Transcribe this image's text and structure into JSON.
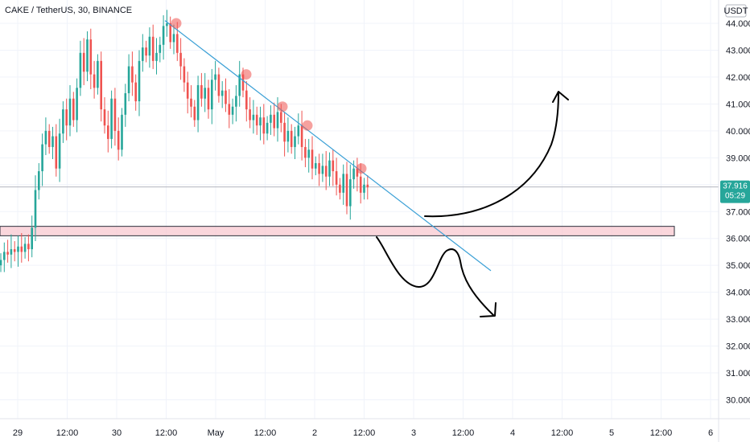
{
  "chart_data": {
    "type": "candlestick",
    "title": "CAKE / TetherUS, 30, BINANCE",
    "currency": "USDT",
    "last_price": {
      "value": "37.916",
      "countdown": "05:29",
      "price": 37.916
    },
    "ylim": [
      29.5,
      44.5
    ],
    "y_ticks": [
      "30.000",
      "31.000",
      "32.000",
      "33.000",
      "34.000",
      "35.000",
      "36.000",
      "37.000",
      "38.000",
      "39.000",
      "40.000",
      "41.000",
      "42.000",
      "43.000",
      "44.000"
    ],
    "x_ticks": [
      "29",
      "12:00",
      "30",
      "12:00",
      "May",
      "12:00",
      "2",
      "12:00",
      "3",
      "12:00",
      "4",
      "12:00",
      "5",
      "12:00",
      "6"
    ],
    "closes": [
      35.2,
      35.5,
      35.4,
      35.6,
      35.5,
      35.7,
      35.5,
      35.8,
      35.6,
      36.4,
      37.8,
      38.5,
      39.5,
      40.0,
      39.4,
      39.8,
      38.6,
      39.9,
      40.8,
      40.2,
      41.2,
      40.4,
      41.6,
      42.9,
      42.2,
      43.4,
      42.1,
      41.6,
      42.6,
      40.8,
      40.2,
      39.7,
      41.2,
      40.0,
      39.3,
      40.6,
      41.4,
      42.4,
      41.8,
      41.1,
      42.6,
      43.1,
      42.8,
      43.5,
      42.6,
      42.9,
      43.2,
      43.9,
      44.0,
      43.3,
      43.6,
      42.9,
      42.4,
      41.8,
      41.2,
      40.9,
      40.4,
      41.7,
      41.2,
      41.6,
      40.8,
      41.9,
      42.1,
      41.3,
      41.5,
      41.0,
      40.6,
      40.9,
      41.3,
      42.1,
      41.5,
      40.8,
      40.4,
      40.6,
      40.2,
      40.5,
      39.9,
      40.3,
      40.6,
      40.1,
      40.7,
      40.3,
      39.6,
      40.0,
      39.4,
      39.8,
      40.2,
      39.4,
      39.0,
      39.3,
      38.6,
      38.8,
      38.4,
      38.7,
      38.3,
      38.9,
      38.5,
      38.0,
      37.7,
      38.4,
      37.2,
      38.2,
      38.6,
      38.3,
      37.7,
      38.0,
      37.9
    ],
    "annotations": {
      "trendline": {
        "from": [
          4,
          44.1
        ],
        "to": [
          13.6,
          34.8
        ]
      },
      "touch_points": [
        [
          4.2,
          44.0
        ],
        [
          6.0,
          42.1
        ],
        [
          7.1,
          40.9
        ],
        [
          7.9,
          40.2
        ],
        [
          9.8,
          38.6
        ]
      ],
      "support_zone": [
        36.1,
        36.45
      ]
    }
  }
}
